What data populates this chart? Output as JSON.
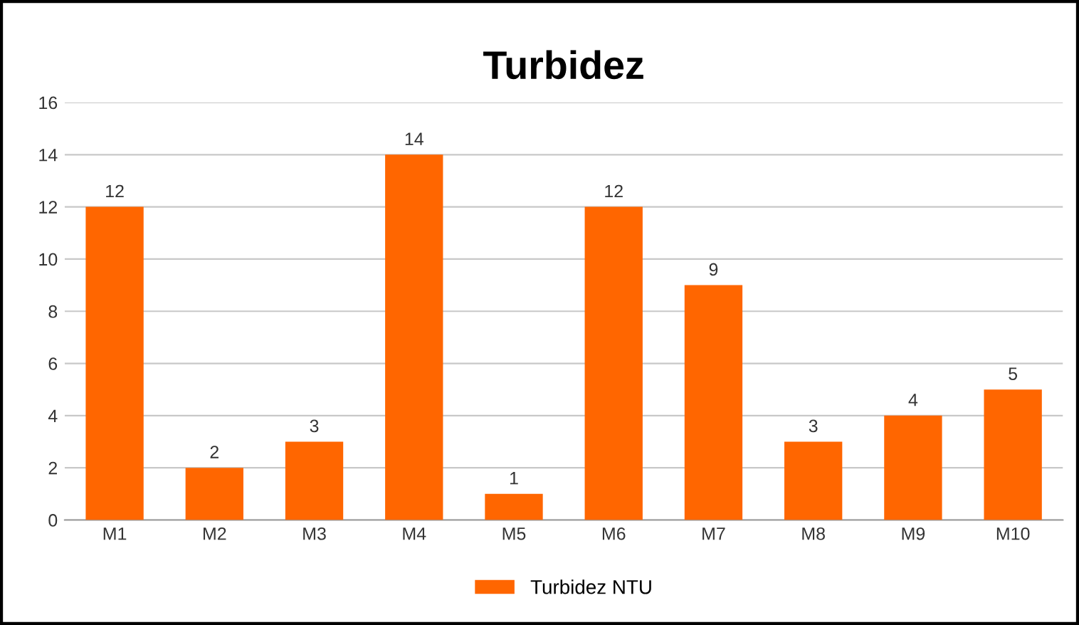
{
  "chart_data": {
    "type": "bar",
    "title": "Turbidez",
    "categories": [
      "M1",
      "M2",
      "M3",
      "M4",
      "M5",
      "M6",
      "M7",
      "M8",
      "M9",
      "M10"
    ],
    "series": [
      {
        "name": "Turbidez NTU",
        "color": "#ff6600",
        "values": [
          12,
          2,
          3,
          14,
          1,
          12,
          9,
          3,
          4,
          5
        ]
      }
    ],
    "ylim": [
      0,
      16
    ],
    "yticks": [
      0,
      2,
      4,
      6,
      8,
      10,
      12,
      14,
      16
    ],
    "grid": "y",
    "legend": "bottom",
    "data_labels": true
  }
}
